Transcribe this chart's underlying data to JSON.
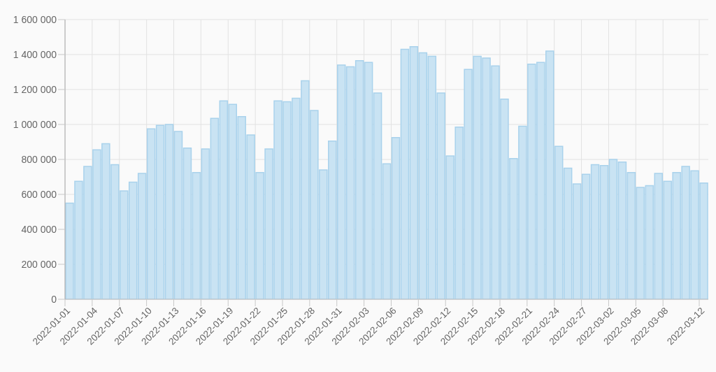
{
  "chart_data": {
    "type": "bar",
    "categories": [
      "2022-01-01",
      null,
      null,
      "2022-01-04",
      null,
      null,
      "2022-01-07",
      null,
      null,
      "2022-01-10",
      null,
      null,
      "2022-01-13",
      null,
      null,
      "2022-01-16",
      null,
      null,
      "2022-01-19",
      null,
      null,
      "2022-01-22",
      null,
      null,
      "2022-01-25",
      null,
      null,
      "2022-01-28",
      null,
      null,
      "2022-01-31",
      null,
      null,
      "2022-02-03",
      null,
      null,
      "2022-02-06",
      null,
      null,
      "2022-02-09",
      null,
      null,
      "2022-02-12",
      null,
      null,
      "2022-02-15",
      null,
      null,
      "2022-02-18",
      null,
      null,
      "2022-02-21",
      null,
      null,
      "2022-02-24",
      null,
      null,
      "2022-02-27",
      null,
      null,
      "2022-03-02",
      null,
      null,
      "2022-03-05",
      null,
      null,
      "2022-03-08",
      null,
      null,
      null,
      "2022-03-12"
    ],
    "values": [
      550000,
      675000,
      760000,
      855000,
      890000,
      770000,
      620000,
      670000,
      720000,
      975000,
      995000,
      1000000,
      960000,
      865000,
      725000,
      860000,
      1035000,
      1135000,
      1115000,
      1045000,
      940000,
      725000,
      860000,
      1135000,
      1130000,
      1150000,
      1250000,
      1080000,
      740000,
      905000,
      1340000,
      1330000,
      1365000,
      1355000,
      1180000,
      775000,
      925000,
      1430000,
      1445000,
      1410000,
      1390000,
      1180000,
      820000,
      985000,
      1315000,
      1390000,
      1380000,
      1335000,
      1145000,
      805000,
      990000,
      1345000,
      1355000,
      1420000,
      875000,
      750000,
      660000,
      715000,
      770000,
      765000,
      800000,
      785000,
      725000,
      640000,
      650000,
      720000,
      675000,
      725000,
      760000,
      735000,
      665000
    ],
    "color": "#c9e3f3",
    "ylim": [
      0,
      1600000
    ],
    "yticks": [
      0,
      {
        "value": 200000,
        "label": "200 000"
      },
      {
        "value": 400000,
        "label": "400 000"
      },
      {
        "value": 600000,
        "label": "600 000"
      },
      {
        "value": 800000,
        "label": "800 000"
      },
      {
        "value": 1000000,
        "label": "1 000 000"
      },
      {
        "value": 1200000,
        "label": "1 200 000"
      },
      {
        "value": 1400000,
        "label": "1 400 000"
      },
      {
        "value": 1600000,
        "label": "1 600 000"
      }
    ],
    "grid": true
  }
}
